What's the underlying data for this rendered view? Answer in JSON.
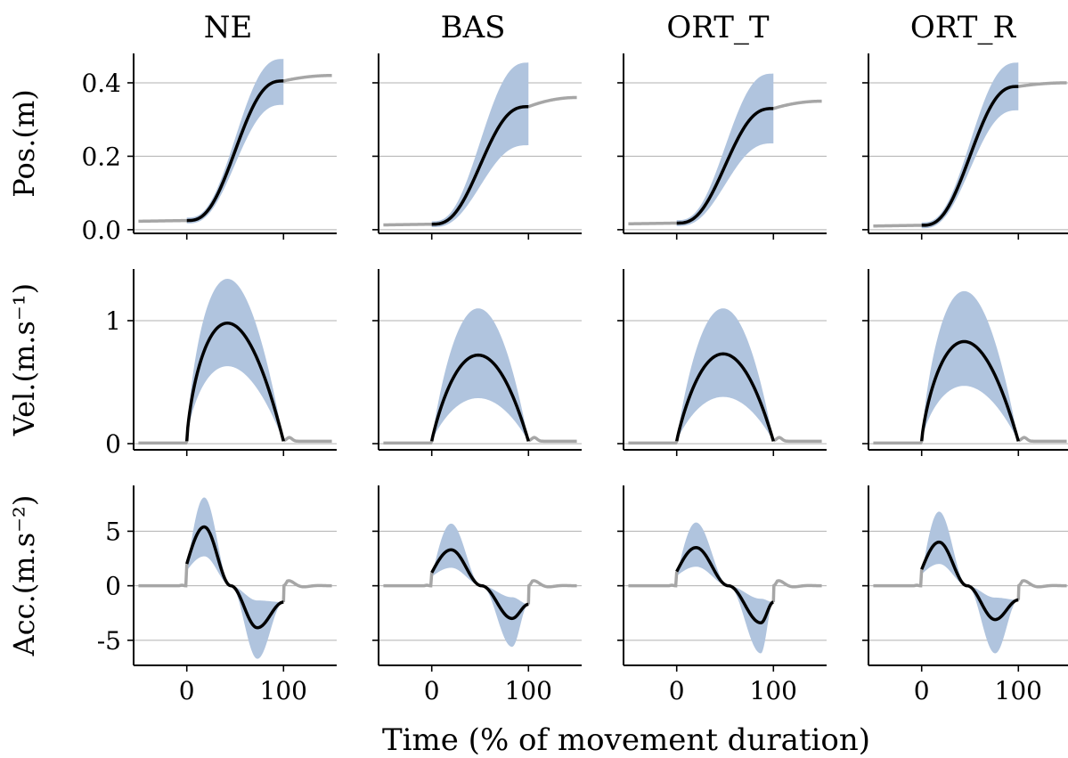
{
  "chart_data": {
    "type": "line",
    "columns": [
      "NE",
      "BAS",
      "ORT_T",
      "ORT_R"
    ],
    "row_labels": [
      "Pos.(m)",
      "Vel.(m.s⁻¹)",
      "Acc.(m.s⁻²)"
    ],
    "xlabel": "Time (% of movement duration)",
    "xlim": [
      -55,
      155
    ],
    "x_ticks": [
      0,
      100
    ],
    "x_tick_labels": [
      "0",
      "100"
    ],
    "rows": [
      {
        "key": "pos",
        "ylim": [
          -0.01,
          0.48
        ],
        "y_ticks": [
          0,
          0.2,
          0.4
        ],
        "y_tick_labels": [
          "0.0",
          "0.2",
          "0.4"
        ],
        "grid": true
      },
      {
        "key": "vel",
        "ylim": [
          -0.05,
          1.42
        ],
        "y_ticks": [
          0,
          1
        ],
        "y_tick_labels": [
          "0",
          "1"
        ],
        "grid": true
      },
      {
        "key": "acc",
        "ylim": [
          -7.3,
          9.2
        ],
        "y_ticks": [
          -5,
          0,
          5
        ],
        "y_tick_labels": [
          "-5",
          "0",
          "5"
        ],
        "grid": true
      }
    ],
    "colors": {
      "mean": "#000000",
      "band": "#b0c4de",
      "outside": "#a6a6a6",
      "grid": "#b0b0b0"
    },
    "panels": [
      {
        "column": "NE",
        "pos": {
          "start": 0.025,
          "end": 0.405,
          "final": 0.42,
          "band_lo_end": 0.34,
          "band_hi_end": 0.465
        },
        "vel": {
          "peak": 0.98,
          "peak_x": 42,
          "band_lo_peak": 0.63,
          "band_hi_peak": 1.34
        },
        "acc": {
          "start": 2.0,
          "max": 5.4,
          "max_x": 18,
          "min": -3.85,
          "min_x": 73,
          "end": -1.5,
          "band_hi_max": 8.1,
          "band_lo_min": -6.7
        }
      },
      {
        "column": "BAS",
        "pos": {
          "start": 0.015,
          "end": 0.335,
          "final": 0.36,
          "band_lo_end": 0.23,
          "band_hi_end": 0.455
        },
        "vel": {
          "peak": 0.72,
          "peak_x": 48,
          "band_lo_peak": 0.37,
          "band_hi_peak": 1.1
        },
        "acc": {
          "start": 1.2,
          "max": 3.3,
          "max_x": 20,
          "min": -3.0,
          "min_x": 83,
          "end": -1.7,
          "band_hi_max": 5.7,
          "band_lo_min": -5.6
        }
      },
      {
        "column": "ORT_T",
        "pos": {
          "start": 0.018,
          "end": 0.33,
          "final": 0.35,
          "band_lo_end": 0.235,
          "band_hi_end": 0.425
        },
        "vel": {
          "peak": 0.73,
          "peak_x": 48,
          "band_lo_peak": 0.38,
          "band_hi_peak": 1.1
        },
        "acc": {
          "start": 1.3,
          "max": 3.5,
          "max_x": 20,
          "min": -3.4,
          "min_x": 87,
          "end": -1.5,
          "band_hi_max": 5.8,
          "band_lo_min": -6.2
        }
      },
      {
        "column": "ORT_R",
        "pos": {
          "start": 0.012,
          "end": 0.39,
          "final": 0.4,
          "band_lo_end": 0.325,
          "band_hi_end": 0.455
        },
        "vel": {
          "peak": 0.83,
          "peak_x": 44,
          "band_lo_peak": 0.47,
          "band_hi_peak": 1.24
        },
        "acc": {
          "start": 1.5,
          "max": 4.0,
          "max_x": 18,
          "min": -3.1,
          "min_x": 76,
          "end": -1.3,
          "band_hi_max": 6.8,
          "band_lo_min": -6.2
        }
      }
    ]
  }
}
